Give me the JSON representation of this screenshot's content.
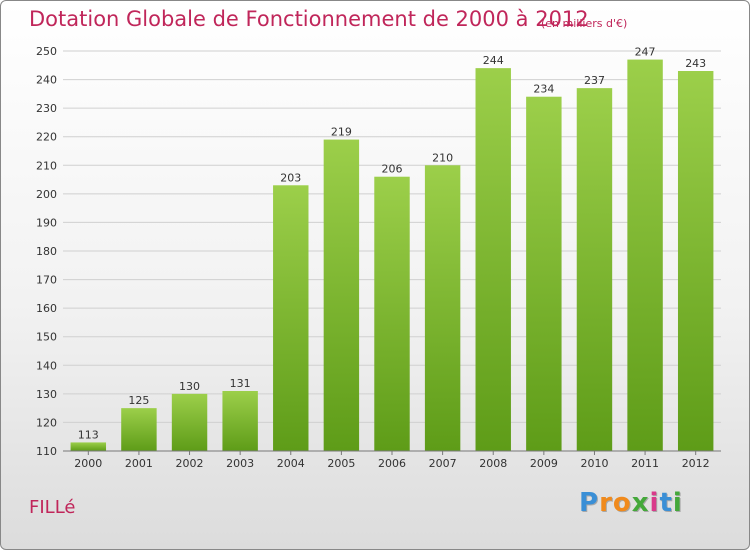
{
  "header": {
    "title": "Dotation Globale de Fonctionnement de 2000 à 2012",
    "subtitle": "(en milliers d'€)"
  },
  "footer": {
    "town": "FILLé",
    "logo_text": "Proxiti",
    "logo_colors": [
      "#3a8fd6",
      "#f08a1c",
      "#f08a1c",
      "#44a83a",
      "#d93a8a",
      "#3a8fd6",
      "#44a83a"
    ]
  },
  "chart_data": {
    "type": "bar",
    "categories": [
      "2000",
      "2001",
      "2002",
      "2003",
      "2004",
      "2005",
      "2006",
      "2007",
      "2008",
      "2009",
      "2010",
      "2011",
      "2012"
    ],
    "values": [
      113,
      125,
      130,
      131,
      203,
      219,
      206,
      210,
      244,
      234,
      237,
      247,
      243
    ],
    "ylim": [
      110,
      250
    ],
    "yticks": [
      110,
      120,
      130,
      140,
      150,
      160,
      170,
      180,
      190,
      200,
      210,
      220,
      230,
      240,
      250
    ],
    "grid": true,
    "bar_color_top": "#9ccf4a",
    "bar_color_bottom": "#5e9c18"
  }
}
